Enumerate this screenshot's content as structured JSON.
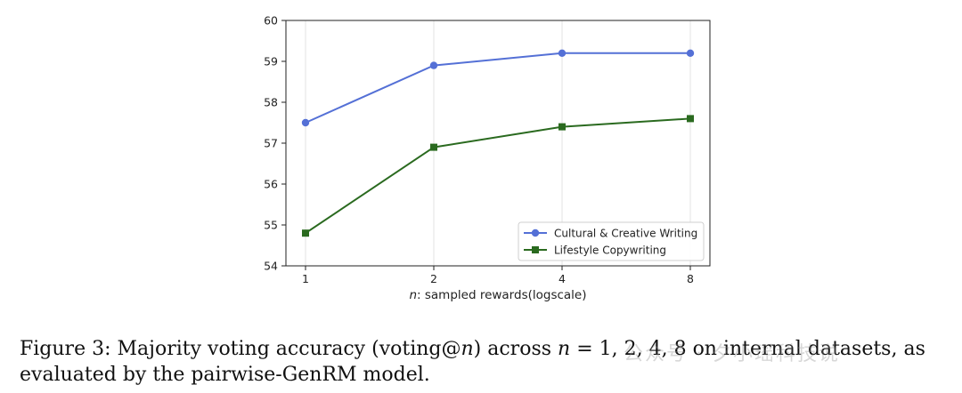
{
  "chart_data": {
    "type": "line",
    "x": [
      1,
      2,
      4,
      8
    ],
    "x_ticks": [
      "1",
      "2",
      "4",
      "8"
    ],
    "xscale": "log",
    "xlabel_var": "n",
    "xlabel_rest": ": sampled rewards(logscale)",
    "ylabel": "",
    "ylim": [
      54,
      60
    ],
    "y_ticks": [
      54,
      55,
      56,
      57,
      58,
      59,
      60
    ],
    "grid": "vertical",
    "legend_position": "lower-right",
    "series": [
      {
        "name": "Cultural & Creative Writing",
        "values": [
          57.5,
          58.9,
          59.2,
          59.2
        ],
        "color": "#5470d6",
        "marker": "circle"
      },
      {
        "name": "Lifestyle Copywriting",
        "values": [
          54.8,
          56.9,
          57.4,
          57.6
        ],
        "color": "#2a6a1f",
        "marker": "square"
      }
    ]
  },
  "caption": {
    "p1": "Figure 3: Majority voting accuracy (voting@",
    "v1": "n",
    "p2": ") across ",
    "v2": "n",
    "p3": " = 1, 2, 4, 8 on internal datasets, as evaluated by the pairwise-GenRM model."
  },
  "watermark": "公众号 · 夕小瑶科技说"
}
